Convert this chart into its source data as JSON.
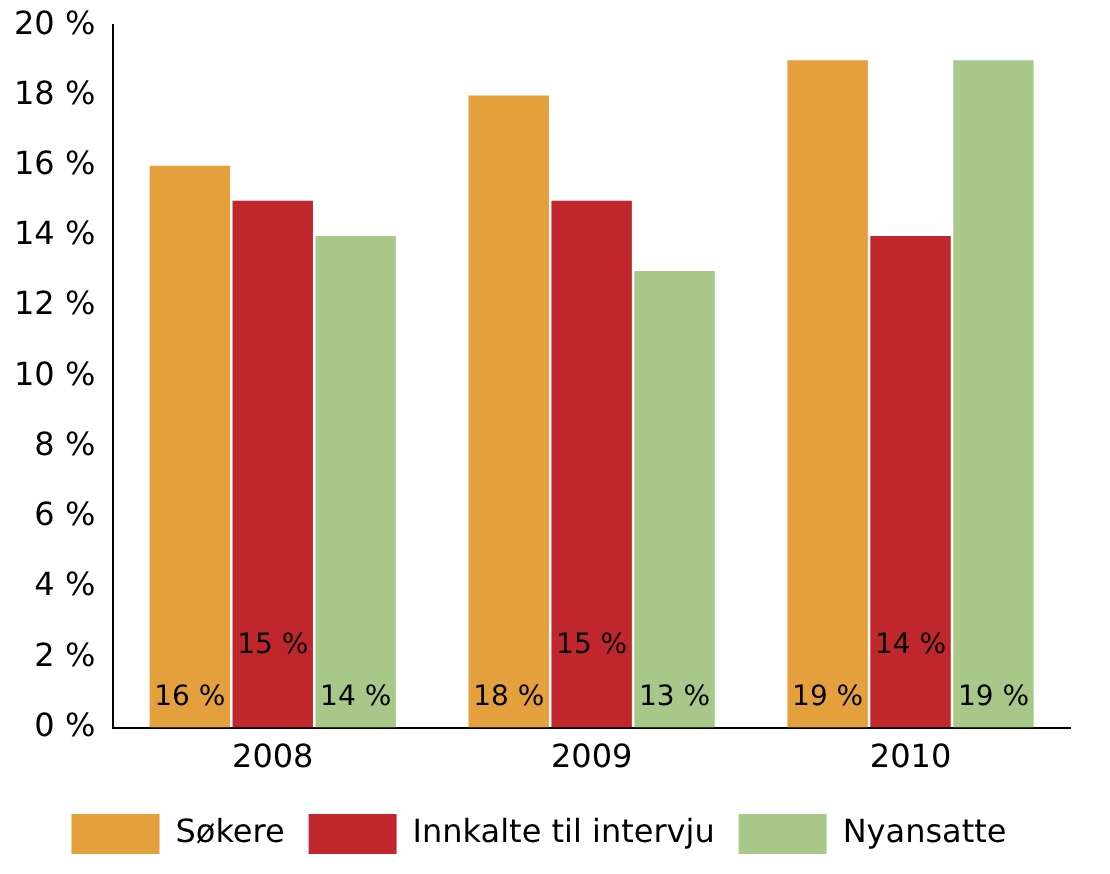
{
  "chart_data": {
    "type": "bar",
    "categories": [
      "2008",
      "2009",
      "2010"
    ],
    "series": [
      {
        "name": "Søkere",
        "color": "#e3a03c",
        "values": [
          16,
          18,
          19
        ],
        "value_labels": [
          "16 %",
          "18 %",
          "19 %"
        ]
      },
      {
        "name": "Innkalte til intervju",
        "color": "#c0272d",
        "values": [
          15,
          15,
          14
        ],
        "value_labels": [
          "15 %",
          "15 %",
          "14 %"
        ]
      },
      {
        "name": "Nyansatte",
        "color": "#a8c88a",
        "values": [
          14,
          13,
          19
        ],
        "value_labels": [
          "14 %",
          "13 %",
          "19 %"
        ]
      }
    ],
    "ylim": [
      0,
      20
    ],
    "yticks": [
      {
        "value": 0,
        "label": "0 %"
      },
      {
        "value": 2,
        "label": "2 %"
      },
      {
        "value": 4,
        "label": "4 %"
      },
      {
        "value": 6,
        "label": "6 %"
      },
      {
        "value": 8,
        "label": "8 %"
      },
      {
        "value": 10,
        "label": "10 %"
      },
      {
        "value": 12,
        "label": "12 %"
      },
      {
        "value": 14,
        "label": "14 %"
      },
      {
        "value": 16,
        "label": "16 %"
      },
      {
        "value": 18,
        "label": "18 %"
      },
      {
        "value": 20,
        "label": "20 %"
      }
    ],
    "grid": false,
    "legend": "bottom"
  }
}
